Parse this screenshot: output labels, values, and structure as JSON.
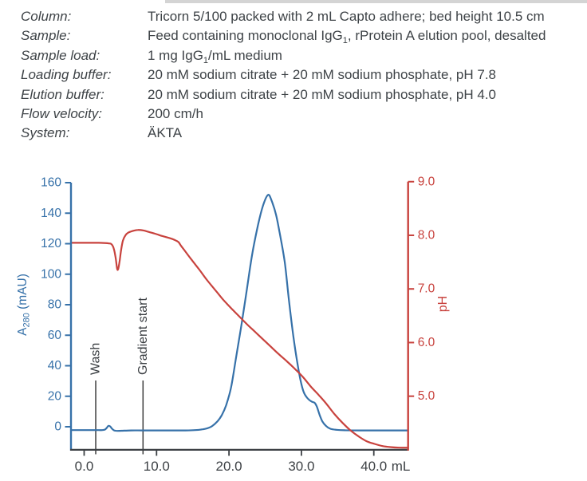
{
  "top_band_color": "#d4d4d4",
  "header": {
    "rows": [
      {
        "label": "Column:",
        "value": [
          {
            "t": "Tricorn 5/100 packed with 2 mL Capto adhere; bed height 10.5 cm"
          }
        ]
      },
      {
        "label": "Sample:",
        "value": [
          {
            "t": "Feed containing monoclonal IgG"
          },
          {
            "t": "1",
            "sub": true
          },
          {
            "t": ", rProtein A elution pool, desalted"
          }
        ]
      },
      {
        "label": "Sample load:",
        "value": [
          {
            "t": "1 mg IgG"
          },
          {
            "t": "1",
            "sub": true
          },
          {
            "t": "/mL medium"
          }
        ]
      },
      {
        "label": "Loading buffer:",
        "value": [
          {
            "t": "20 mM sodium citrate + 20 mM sodium phosphate, pH 7.8"
          }
        ]
      },
      {
        "label": "Elution buffer:",
        "value": [
          {
            "t": "20 mM sodium citrate + 20 mM sodium phosphate, pH 4.0"
          }
        ]
      },
      {
        "label": "Flow velocity:",
        "value": [
          {
            "t": "200 cm/h"
          }
        ]
      },
      {
        "label": "System:",
        "value": [
          {
            "t": "ÄKTA"
          }
        ]
      }
    ]
  },
  "chart_data": {
    "type": "line",
    "x_axis": {
      "unit": "mL",
      "ticks": [
        0,
        10,
        20,
        30,
        40
      ],
      "tick_labels": [
        "0.0",
        "10.0",
        "20.0",
        "30.0",
        "40.0"
      ],
      "range": [
        -1.8,
        44.7
      ],
      "color": "#3d4145"
    },
    "y_left": {
      "label_parts": [
        {
          "t": "A"
        },
        {
          "t": "280",
          "sub": true
        },
        {
          "t": " (mAU)"
        }
      ],
      "label": "A280 (mAU)",
      "color": "#3671a9",
      "ticks": [
        0,
        20,
        40,
        60,
        80,
        100,
        120,
        140,
        160
      ],
      "range": [
        -15.2,
        160
      ]
    },
    "y_right": {
      "label": "pH",
      "color": "#c8423d",
      "ticks": [
        5,
        6,
        7,
        8,
        9
      ],
      "tick_labels": [
        "5.0",
        "6.0",
        "7.0",
        "8.0",
        "9.0"
      ],
      "range": [
        4.0,
        9.0
      ]
    },
    "annotations": [
      {
        "label": "Wash",
        "x_ml": 1.6
      },
      {
        "label": "Gradient start",
        "x_ml": 8.13
      }
    ],
    "series": [
      {
        "name": "A280",
        "axis": "left",
        "color": "#3671a9",
        "points": [
          [
            -1.8,
            -2.2
          ],
          [
            0,
            -2.2
          ],
          [
            1,
            -2.2
          ],
          [
            2,
            -2.2
          ],
          [
            2.5,
            -2.2
          ],
          [
            2.85,
            -1.9
          ],
          [
            3.1,
            -0.9
          ],
          [
            3.35,
            0.6
          ],
          [
            3.6,
            0.2
          ],
          [
            3.85,
            -1.3
          ],
          [
            4.15,
            -2.4
          ],
          [
            4.6,
            -2.7
          ],
          [
            5.2,
            -2.6
          ],
          [
            6.5,
            -2.4
          ],
          [
            8,
            -2.4
          ],
          [
            10,
            -2.4
          ],
          [
            12,
            -2.4
          ],
          [
            14,
            -2.4
          ],
          [
            15.3,
            -2.2
          ],
          [
            16.2,
            -1.8
          ],
          [
            17,
            -1.0
          ],
          [
            17.7,
            0.5
          ],
          [
            18.4,
            3.5
          ],
          [
            19,
            7.5
          ],
          [
            19.6,
            14
          ],
          [
            20.3,
            26
          ],
          [
            21,
            46
          ],
          [
            21.8,
            69
          ],
          [
            22.5,
            91
          ],
          [
            23.2,
            113
          ],
          [
            24,
            132
          ],
          [
            24.7,
            145
          ],
          [
            25.4,
            152
          ],
          [
            25.9,
            148
          ],
          [
            26.5,
            139
          ],
          [
            27,
            127
          ],
          [
            27.7,
            108
          ],
          [
            28.3,
            82
          ],
          [
            28.9,
            59
          ],
          [
            29.4,
            43
          ],
          [
            29.9,
            30
          ],
          [
            30.3,
            23
          ],
          [
            30.7,
            19.5
          ],
          [
            31.1,
            17.5
          ],
          [
            31.5,
            16.3
          ],
          [
            31.85,
            15.6
          ],
          [
            32.15,
            13
          ],
          [
            32.5,
            8
          ],
          [
            32.9,
            3.5
          ],
          [
            33.4,
            0.5
          ],
          [
            34,
            -1.3
          ],
          [
            34.8,
            -2.0
          ],
          [
            36,
            -2.3
          ],
          [
            38,
            -2.4
          ],
          [
            42,
            -2.4
          ],
          [
            44.7,
            -2.4
          ]
        ]
      },
      {
        "name": "pH",
        "axis": "right",
        "color": "#c8423d",
        "points": [
          [
            -1.8,
            7.86
          ],
          [
            0,
            7.86
          ],
          [
            2,
            7.86
          ],
          [
            3.4,
            7.85
          ],
          [
            3.8,
            7.83
          ],
          [
            4.1,
            7.75
          ],
          [
            4.35,
            7.58
          ],
          [
            4.55,
            7.38
          ],
          [
            4.7,
            7.37
          ],
          [
            4.9,
            7.52
          ],
          [
            5.1,
            7.72
          ],
          [
            5.35,
            7.9
          ],
          [
            5.7,
            8.0
          ],
          [
            6.1,
            8.05
          ],
          [
            6.7,
            8.08
          ],
          [
            7.4,
            8.1
          ],
          [
            8.2,
            8.09
          ],
          [
            9.0,
            8.06
          ],
          [
            9.8,
            8.03
          ],
          [
            10.7,
            7.99
          ],
          [
            11.5,
            7.96
          ],
          [
            12.2,
            7.93
          ],
          [
            12.7,
            7.9
          ],
          [
            13.05,
            7.87
          ],
          [
            13.4,
            7.8
          ],
          [
            13.8,
            7.73
          ],
          [
            14.8,
            7.55
          ],
          [
            15.9,
            7.36
          ],
          [
            17,
            7.16
          ],
          [
            18.1,
            6.98
          ],
          [
            19.2,
            6.8
          ],
          [
            20.3,
            6.64
          ],
          [
            21.4,
            6.49
          ],
          [
            22.5,
            6.34
          ],
          [
            23.6,
            6.2
          ],
          [
            24.7,
            6.06
          ],
          [
            25.8,
            5.92
          ],
          [
            26.9,
            5.78
          ],
          [
            28,
            5.65
          ],
          [
            29.1,
            5.51
          ],
          [
            30.2,
            5.36
          ],
          [
            31.3,
            5.18
          ],
          [
            32.4,
            5.02
          ],
          [
            33.5,
            4.85
          ],
          [
            34.6,
            4.66
          ],
          [
            35.7,
            4.5
          ],
          [
            36.8,
            4.36
          ],
          [
            37.9,
            4.25
          ],
          [
            39,
            4.16
          ],
          [
            40.1,
            4.11
          ],
          [
            41.2,
            4.07
          ],
          [
            42.3,
            4.05
          ],
          [
            43.5,
            4.04
          ],
          [
            44.7,
            4.04
          ]
        ]
      }
    ]
  }
}
